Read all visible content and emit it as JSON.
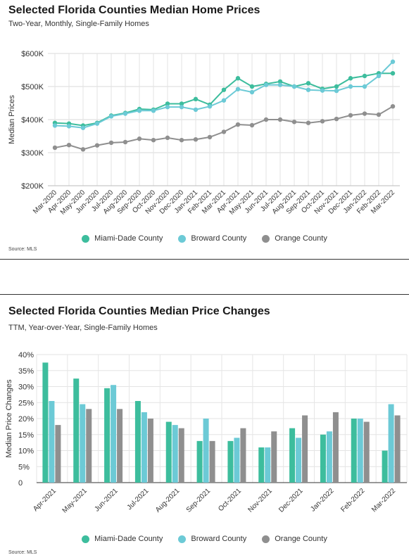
{
  "colors": {
    "miami": "#3dbd9d",
    "broward": "#6ccad6",
    "orange": "#8f8f8f"
  },
  "chart1": {
    "title": "Selected Florida Counties Median Home Prices",
    "subtitle": "Two-Year, Monthly, Single-Family Homes",
    "source": "Source:  MLS",
    "legend": [
      "Miami-Dade County",
      "Broward County",
      "Orange County"
    ]
  },
  "chart2": {
    "title": "Selected Florida Counties Median Price Changes",
    "subtitle": "TTM, Year-over-Year, Single-Family Homes",
    "source": "Source:  MLS",
    "legend": [
      "Miami-Dade County",
      "Broward County",
      "Orange County"
    ]
  },
  "chart_data": [
    {
      "type": "line",
      "title": "Selected Florida Counties Median Home Prices",
      "subtitle": "Two-Year, Monthly, Single-Family Homes",
      "ylabel": "Median Prices",
      "xlabel": "",
      "ylim": [
        200000,
        600000
      ],
      "ytick_labels": [
        "$200K",
        "$300K",
        "$400K",
        "$500K",
        "$600K"
      ],
      "grid": true,
      "categories": [
        "Mar-2020",
        "Apr-2020",
        "May-2020",
        "Jun-2020",
        "Jul-2020",
        "Aug-2020",
        "Sep-2020",
        "Oct-2020",
        "Nov-2020",
        "Dec-2020",
        "Jan-2021",
        "Feb-2021",
        "Mar-2021",
        "Apr-2021",
        "May-2021",
        "Jun-2021",
        "Jul-2021",
        "Aug-2021",
        "Sep-2021",
        "Oct-2021",
        "Nov-2021",
        "Dec-2021",
        "Jan-2022",
        "Feb-2022",
        "Mar-2022"
      ],
      "series": [
        {
          "name": "Miami-Dade County",
          "values": [
            390000,
            388000,
            382000,
            390000,
            412000,
            420000,
            432000,
            430000,
            448000,
            448000,
            462000,
            445000,
            490000,
            525000,
            500000,
            508000,
            515000,
            500000,
            510000,
            493000,
            500000,
            525000,
            532000,
            540000,
            540000
          ]
        },
        {
          "name": "Broward County",
          "values": [
            382000,
            380000,
            375000,
            388000,
            410000,
            418000,
            427000,
            427000,
            438000,
            438000,
            430000,
            440000,
            458000,
            492000,
            483000,
            505000,
            505000,
            500000,
            490000,
            488000,
            487000,
            500000,
            500000,
            532000,
            575000
          ]
        },
        {
          "name": "Orange County",
          "values": [
            315000,
            323000,
            310000,
            322000,
            330000,
            332000,
            342000,
            338000,
            345000,
            338000,
            340000,
            347000,
            363000,
            385000,
            383000,
            400000,
            400000,
            393000,
            390000,
            395000,
            402000,
            413000,
            418000,
            415000,
            440000
          ]
        }
      ],
      "legend_position": "bottom"
    },
    {
      "type": "bar",
      "title": "Selected Florida Counties Median Price Changes",
      "subtitle": "TTM, Year-over-Year, Single-Family Homes",
      "ylabel": "Median Price Changes",
      "xlabel": "",
      "ylim": [
        0,
        40
      ],
      "ytick_labels": [
        "0",
        "5%",
        "10%",
        "15%",
        "20%",
        "25%",
        "30%",
        "35%",
        "40%"
      ],
      "grid": true,
      "categories": [
        "Apr-2021",
        "May-2021",
        "Jun-2021",
        "Jul-2021",
        "Aug-2021",
        "Sep-2021",
        "Oct-2021",
        "Nov-2021",
        "Dec-2021",
        "Jan-2022",
        "Feb-2022",
        "Mar-2022"
      ],
      "series": [
        {
          "name": "Miami-Dade County",
          "values": [
            37.5,
            32.5,
            29.5,
            25.5,
            19,
            13,
            13,
            11,
            17,
            15,
            20,
            10
          ]
        },
        {
          "name": "Broward County",
          "values": [
            25.5,
            24.5,
            30.5,
            22,
            18,
            20,
            14,
            11,
            14,
            16,
            20,
            24.5
          ]
        },
        {
          "name": "Orange County",
          "values": [
            18,
            23,
            23,
            20,
            17,
            13,
            17,
            16,
            21,
            22,
            19,
            21
          ]
        }
      ],
      "legend_position": "bottom"
    }
  ]
}
